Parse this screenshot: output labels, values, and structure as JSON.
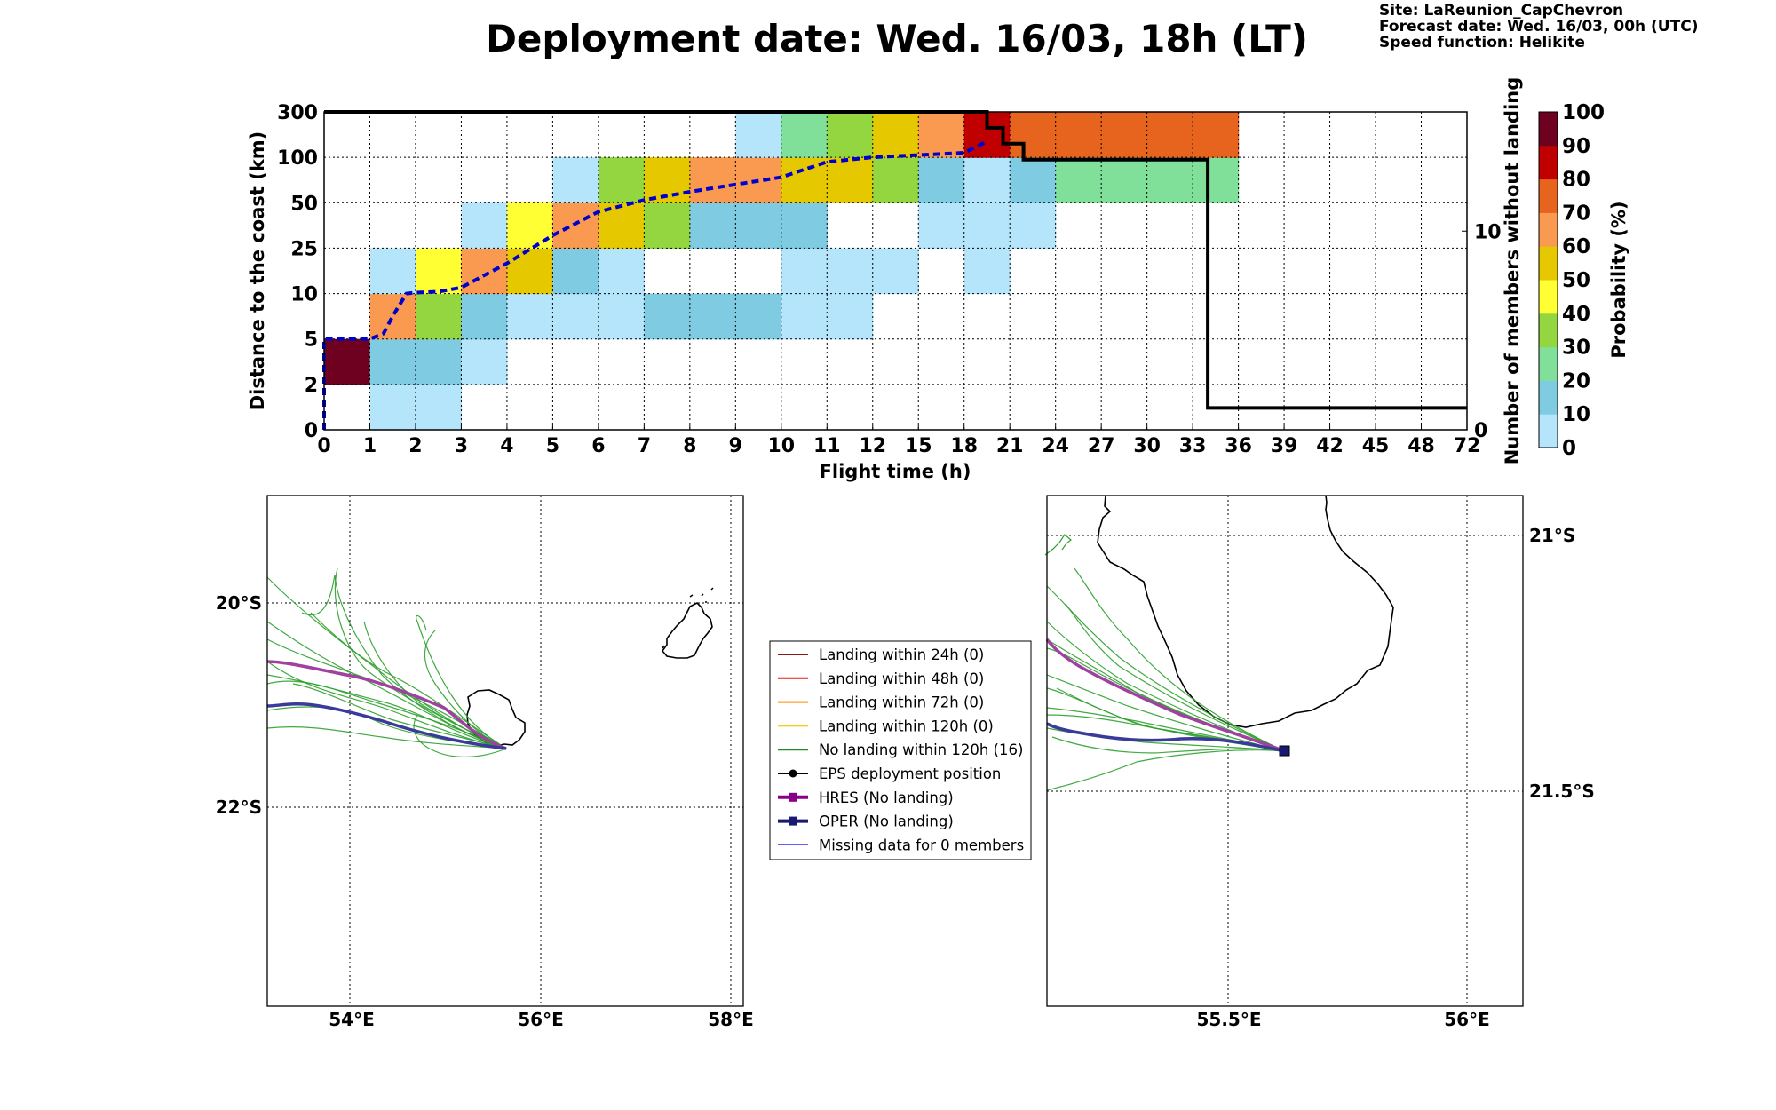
{
  "header": {
    "title": "Deployment date: Wed. 16/03, 18h (LT)",
    "site": "Site: LaReunion_CapChevron",
    "forecast": "Forecast date: Wed. 16/03, 00h (UTC)",
    "speed": "Speed function: Helikite"
  },
  "chart_data": [
    {
      "type": "heatmap",
      "xlabel": "Flight time (h)",
      "ylabel": "Distance to the coast (km)",
      "y2label": "Number of members without landing",
      "colorbar_label": "Probability (%)",
      "x_ticks": [
        "0",
        "1",
        "2",
        "3",
        "4",
        "5",
        "6",
        "7",
        "8",
        "9",
        "10",
        "11",
        "12",
        "15",
        "18",
        "21",
        "24",
        "27",
        "30",
        "33",
        "36",
        "39",
        "42",
        "45",
        "48",
        "72"
      ],
      "y_ticks": [
        "0",
        "2",
        "5",
        "10",
        "25",
        "50",
        "100",
        "300"
      ],
      "y2_ticks": [
        "0",
        "10"
      ],
      "y2_range": [
        0,
        16
      ],
      "colorbar_ticks": [
        "0",
        "10",
        "20",
        "30",
        "40",
        "50",
        "60",
        "70",
        "80",
        "90",
        "100"
      ],
      "color_scale": [
        "#b4e5fa",
        "#7fcbe2",
        "#80e09a",
        "#94d640",
        "#ffff33",
        "#e6c800",
        "#fa9a50",
        "#e6641e",
        "#c00000",
        "#6e0020"
      ],
      "grid": true,
      "cells": [
        {
          "x": 0,
          "y": 1,
          "c": 9
        },
        {
          "x": 1,
          "y": 0,
          "c": 0
        },
        {
          "x": 2,
          "y": 0,
          "c": 0
        },
        {
          "x": 1,
          "y": 1,
          "c": 1
        },
        {
          "x": 2,
          "y": 1,
          "c": 1
        },
        {
          "x": 3,
          "y": 1,
          "c": 0
        },
        {
          "x": 1,
          "y": 2,
          "c": 6
        },
        {
          "x": 2,
          "y": 2,
          "c": 3
        },
        {
          "x": 3,
          "y": 2,
          "c": 1
        },
        {
          "x": 4,
          "y": 2,
          "c": 0
        },
        {
          "x": 5,
          "y": 2,
          "c": 0
        },
        {
          "x": 6,
          "y": 2,
          "c": 0
        },
        {
          "x": 7,
          "y": 2,
          "c": 1
        },
        {
          "x": 8,
          "y": 2,
          "c": 1
        },
        {
          "x": 9,
          "y": 2,
          "c": 1
        },
        {
          "x": 10,
          "y": 2,
          "c": 0
        },
        {
          "x": 11,
          "y": 2,
          "c": 0
        },
        {
          "x": 1,
          "y": 3,
          "c": 0
        },
        {
          "x": 2,
          "y": 3,
          "c": 4
        },
        {
          "x": 3,
          "y": 3,
          "c": 6
        },
        {
          "x": 4,
          "y": 3,
          "c": 5
        },
        {
          "x": 5,
          "y": 3,
          "c": 1
        },
        {
          "x": 6,
          "y": 3,
          "c": 0
        },
        {
          "x": 10,
          "y": 3,
          "c": 0
        },
        {
          "x": 11,
          "y": 3,
          "c": 0
        },
        {
          "x": 12,
          "y": 3,
          "c": 0
        },
        {
          "x": 14,
          "y": 3,
          "c": 0
        },
        {
          "x": 3,
          "y": 4,
          "c": 0
        },
        {
          "x": 4,
          "y": 4,
          "c": 4
        },
        {
          "x": 5,
          "y": 4,
          "c": 6
        },
        {
          "x": 6,
          "y": 4,
          "c": 5
        },
        {
          "x": 7,
          "y": 4,
          "c": 3
        },
        {
          "x": 8,
          "y": 4,
          "c": 1
        },
        {
          "x": 9,
          "y": 4,
          "c": 1
        },
        {
          "x": 10,
          "y": 4,
          "c": 1
        },
        {
          "x": 13,
          "y": 4,
          "c": 0
        },
        {
          "x": 14,
          "y": 4,
          "c": 0
        },
        {
          "x": 15,
          "y": 4,
          "c": 0
        },
        {
          "x": 5,
          "y": 5,
          "c": 0
        },
        {
          "x": 6,
          "y": 5,
          "c": 3
        },
        {
          "x": 7,
          "y": 5,
          "c": 5
        },
        {
          "x": 8,
          "y": 5,
          "c": 6
        },
        {
          "x": 9,
          "y": 5,
          "c": 6
        },
        {
          "x": 10,
          "y": 5,
          "c": 5
        },
        {
          "x": 11,
          "y": 5,
          "c": 5
        },
        {
          "x": 12,
          "y": 5,
          "c": 3
        },
        {
          "x": 13,
          "y": 5,
          "c": 1
        },
        {
          "x": 14,
          "y": 5,
          "c": 0
        },
        {
          "x": 15,
          "y": 5,
          "c": 1
        },
        {
          "x": 16,
          "y": 5,
          "c": 2
        },
        {
          "x": 17,
          "y": 5,
          "c": 2
        },
        {
          "x": 18,
          "y": 5,
          "c": 2
        },
        {
          "x": 19,
          "y": 5,
          "c": 2
        },
        {
          "x": 9,
          "y": 6,
          "c": 0
        },
        {
          "x": 10,
          "y": 6,
          "c": 2
        },
        {
          "x": 11,
          "y": 6,
          "c": 3
        },
        {
          "x": 12,
          "y": 6,
          "c": 5
        },
        {
          "x": 13,
          "y": 6,
          "c": 6
        },
        {
          "x": 14,
          "y": 6,
          "c": 8
        },
        {
          "x": 15,
          "y": 6,
          "c": 7
        },
        {
          "x": 16,
          "y": 6,
          "c": 7
        },
        {
          "x": 17,
          "y": 6,
          "c": 7
        },
        {
          "x": 18,
          "y": 6,
          "c": 7
        },
        {
          "x": 19,
          "y": 6,
          "c": 7
        }
      ],
      "series": [
        {
          "name": "median distance",
          "axis": "left",
          "points": [
            [
              0,
              0
            ],
            [
              0,
              2
            ],
            [
              0,
              5
            ],
            [
              0.5,
              5
            ],
            [
              1,
              5
            ],
            [
              1.3,
              5.6
            ],
            [
              1.5,
              7.5
            ],
            [
              1.8,
              10
            ],
            [
              2,
              10.3
            ],
            [
              2.5,
              10.6
            ],
            [
              3,
              12
            ],
            [
              4,
              20
            ],
            [
              5,
              32
            ],
            [
              6,
              45
            ],
            [
              7,
              53
            ],
            [
              8,
              62
            ],
            [
              9,
              70
            ],
            [
              10,
              78
            ],
            [
              11,
              95
            ],
            [
              12,
              100
            ],
            [
              13,
              110
            ],
            [
              14,
              120
            ],
            [
              14.3,
              150
            ],
            [
              14.5,
              170
            ]
          ]
        },
        {
          "name": "members without landing",
          "axis": "right",
          "points": [
            [
              0,
              16
            ],
            [
              14.5,
              16
            ],
            [
              14.5,
              15.2
            ],
            [
              14.85,
              15.2
            ],
            [
              14.85,
              14.4
            ],
            [
              15.3,
              14.4
            ],
            [
              15.3,
              13.6
            ],
            [
              19.33,
              13.6
            ],
            [
              19.33,
              1.1
            ],
            [
              25,
              1.1
            ]
          ]
        }
      ]
    },
    {
      "type": "map",
      "name": "trajectories-overview",
      "lon_ticks": [
        "54°E",
        "56°E",
        "58°E"
      ],
      "lat_ticks": [
        "20°S",
        "22°S"
      ]
    },
    {
      "type": "map",
      "name": "trajectories-zoom",
      "lon_ticks": [
        "55.5°E",
        "56°E"
      ],
      "lat_ticks": [
        "21°S",
        "21.5°S"
      ]
    }
  ],
  "legend": {
    "items": [
      {
        "label": "Landing within 24h (0)",
        "color": "#8b1a1a",
        "marker": "none",
        "lw": 2
      },
      {
        "label": "Landing within 48h (0)",
        "color": "#e81e1e",
        "marker": "none",
        "lw": 2
      },
      {
        "label": "Landing within 72h (0)",
        "color": "#ff8c00",
        "marker": "none",
        "lw": 2
      },
      {
        "label": "Landing within 120h (0)",
        "color": "#f0d21e",
        "marker": "none",
        "lw": 2
      },
      {
        "label": "No landing within 120h (16)",
        "color": "#228b22",
        "marker": "none",
        "lw": 2
      },
      {
        "label": "EPS deployment position",
        "color": "#000000",
        "marker": "circle",
        "lw": 2
      },
      {
        "label": "HRES (No landing)",
        "color": "#8b008b",
        "marker": "square",
        "lw": 4
      },
      {
        "label": "OPER (No landing)",
        "color": "#191970",
        "marker": "square",
        "lw": 4
      },
      {
        "label": "Missing data for 0 members",
        "color": "#4a4aff",
        "marker": "none",
        "lw": 1
      }
    ]
  }
}
